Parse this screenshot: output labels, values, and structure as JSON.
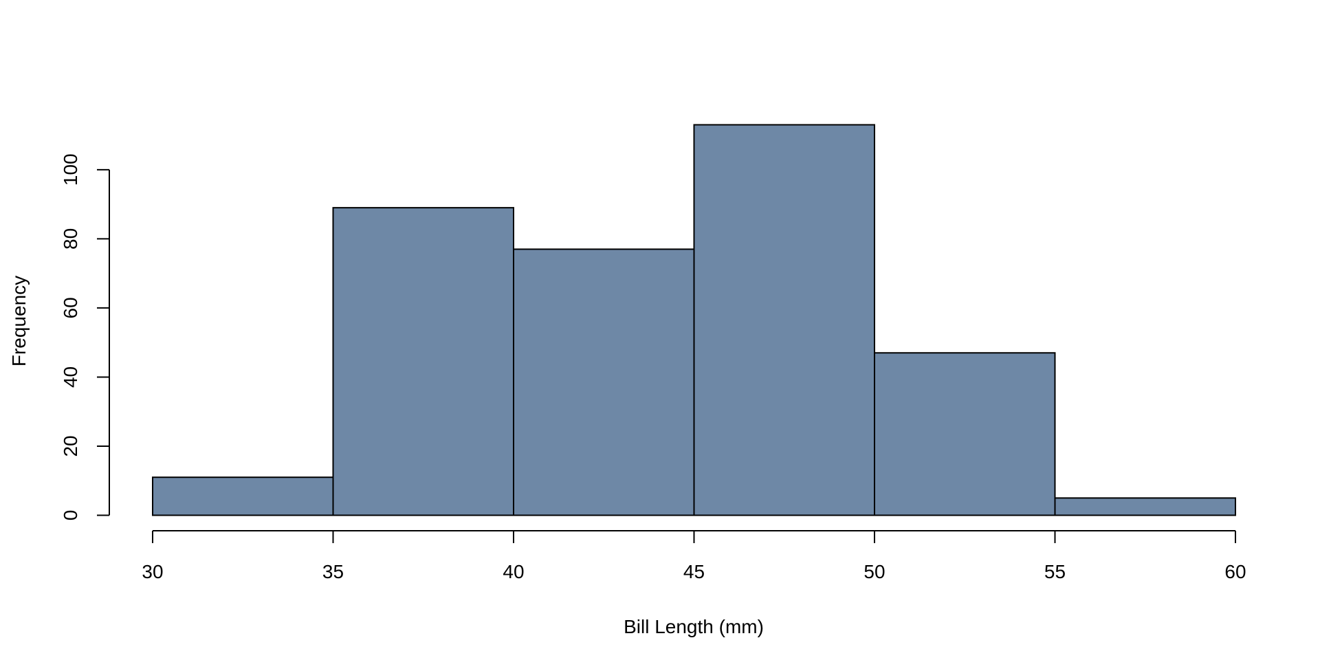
{
  "chart_data": {
    "type": "bar",
    "title": "",
    "xlabel": "Bill Length (mm)",
    "ylabel": "Frequency",
    "bins": [
      {
        "from": 30,
        "to": 35,
        "count": 11
      },
      {
        "from": 35,
        "to": 40,
        "count": 89
      },
      {
        "from": 40,
        "to": 45,
        "count": 77
      },
      {
        "from": 45,
        "to": 50,
        "count": 113
      },
      {
        "from": 50,
        "to": 55,
        "count": 47
      },
      {
        "from": 55,
        "to": 60,
        "count": 5
      }
    ],
    "xlim": [
      30,
      60
    ],
    "ylim": [
      0,
      113
    ],
    "xticks": [
      "30",
      "35",
      "40",
      "45",
      "50",
      "55",
      "60"
    ],
    "yticks": [
      "0",
      "20",
      "40",
      "60",
      "80",
      "100"
    ],
    "grid": false,
    "legend": "none",
    "bar_color": "#6e88a6",
    "edge_color": "#000000"
  }
}
